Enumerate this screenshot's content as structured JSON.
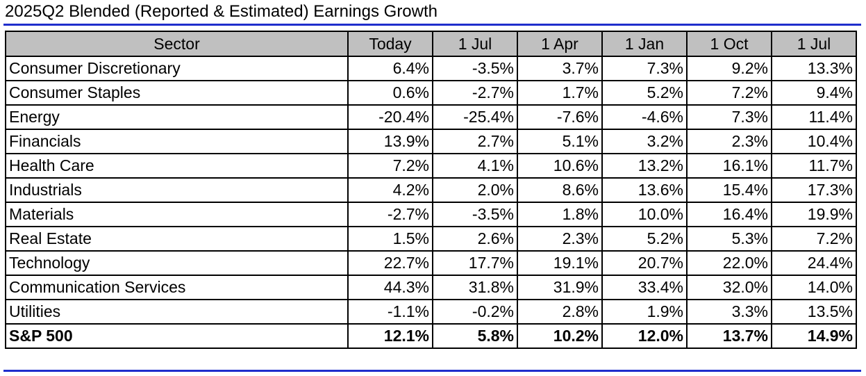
{
  "title": "2025Q2 Blended (Reported & Estimated) Earnings Growth",
  "columns": [
    "Sector",
    "Today",
    "1 Jul",
    "1 Apr",
    "1 Jan",
    "1 Oct",
    "1 Jul"
  ],
  "rows": [
    {
      "sector": "Consumer Discretionary",
      "values": [
        "6.4%",
        "-3.5%",
        "3.7%",
        "7.3%",
        "9.2%",
        "13.3%"
      ]
    },
    {
      "sector": "Consumer Staples",
      "values": [
        "0.6%",
        "-2.7%",
        "1.7%",
        "5.2%",
        "7.2%",
        "9.4%"
      ]
    },
    {
      "sector": "Energy",
      "values": [
        "-20.4%",
        "-25.4%",
        "-7.6%",
        "-4.6%",
        "7.3%",
        "11.4%"
      ]
    },
    {
      "sector": "Financials",
      "values": [
        "13.9%",
        "2.7%",
        "5.1%",
        "3.2%",
        "2.3%",
        "10.4%"
      ]
    },
    {
      "sector": "Health Care",
      "values": [
        "7.2%",
        "4.1%",
        "10.6%",
        "13.2%",
        "16.1%",
        "11.7%"
      ]
    },
    {
      "sector": "Industrials",
      "values": [
        "4.2%",
        "2.0%",
        "8.6%",
        "13.6%",
        "15.4%",
        "17.3%"
      ]
    },
    {
      "sector": "Materials",
      "values": [
        "-2.7%",
        "-3.5%",
        "1.8%",
        "10.0%",
        "16.4%",
        "19.9%"
      ]
    },
    {
      "sector": "Real Estate",
      "values": [
        "1.5%",
        "2.6%",
        "2.3%",
        "5.2%",
        "5.3%",
        "7.2%"
      ]
    },
    {
      "sector": "Technology",
      "values": [
        "22.7%",
        "17.7%",
        "19.1%",
        "20.7%",
        "22.0%",
        "24.4%"
      ]
    },
    {
      "sector": "Communication Services",
      "values": [
        "44.3%",
        "31.8%",
        "31.9%",
        "33.4%",
        "32.0%",
        "14.0%"
      ]
    },
    {
      "sector": "Utilities",
      "values": [
        "-1.1%",
        "-0.2%",
        "2.8%",
        "1.9%",
        "3.3%",
        "13.5%"
      ]
    }
  ],
  "total": {
    "sector": "S&P 500",
    "values": [
      "12.1%",
      "5.8%",
      "10.2%",
      "12.0%",
      "13.7%",
      "14.9%"
    ]
  },
  "colors": {
    "rule": "#1f2ecc",
    "header_bg": "#c0c0c0"
  }
}
